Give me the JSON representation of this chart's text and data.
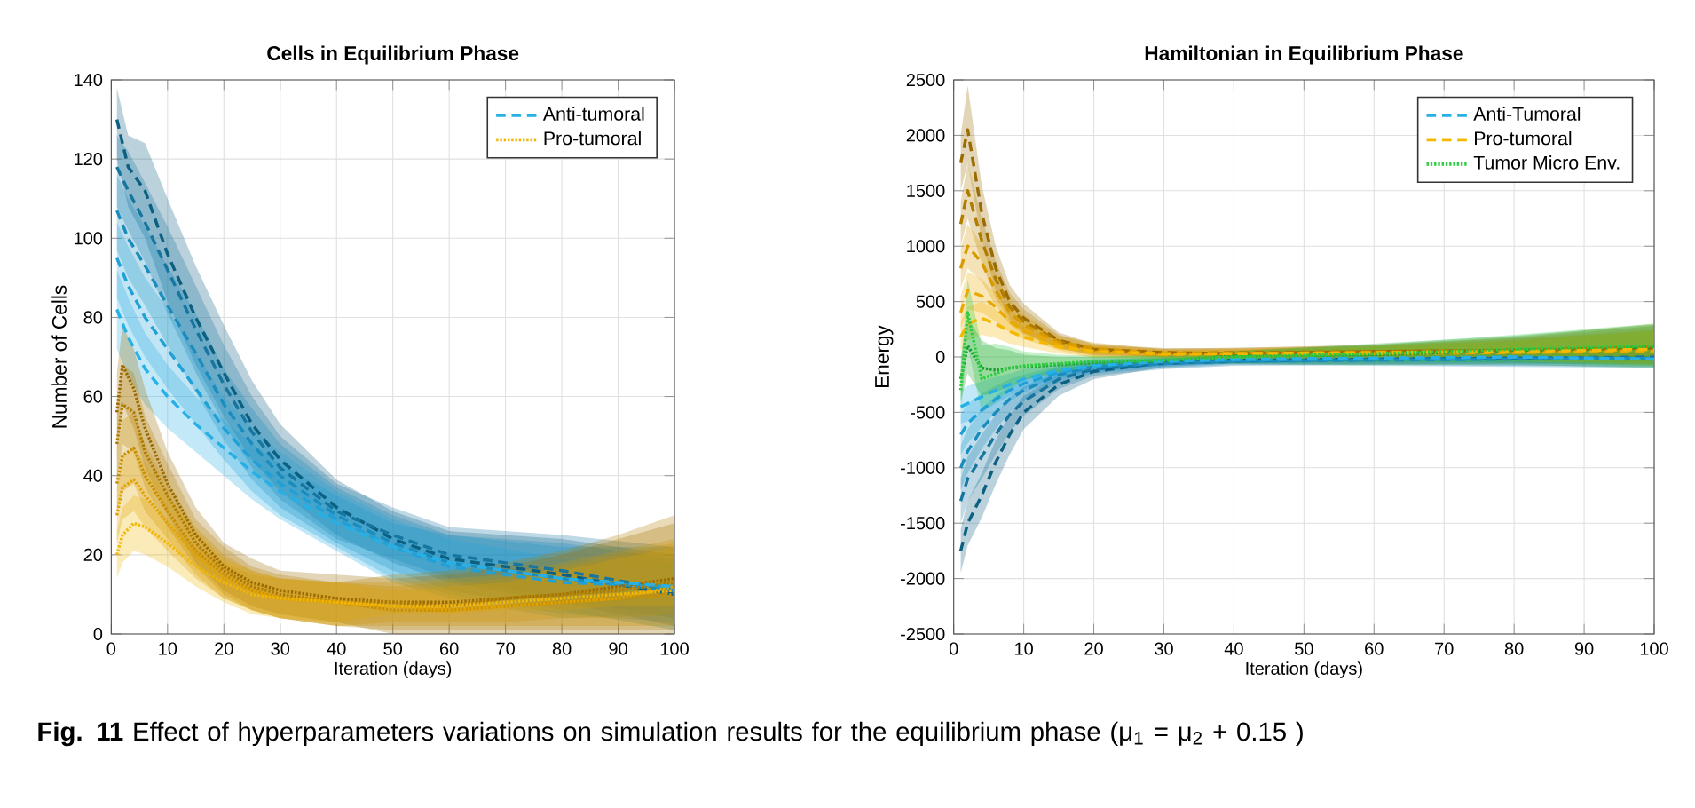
{
  "chart_data": [
    {
      "type": "line",
      "title": "Cells in Equilibrium Phase",
      "xlabel": "Iteration (days)",
      "ylabel": "Number of Cells",
      "xlim": [
        0,
        100
      ],
      "ylim": [
        0,
        140
      ],
      "xticks": [
        0,
        10,
        20,
        30,
        40,
        50,
        60,
        70,
        80,
        90,
        100
      ],
      "yticks": [
        0,
        20,
        40,
        60,
        80,
        100,
        120,
        140
      ],
      "grid": true,
      "legend": "top right",
      "annotations": [
        "**Fig. 11**  Effect of hyperparameters variations on simulation results for the equilibrium phase (μ$_{1}$ = μ$_{2}$ + 0.15 )"
      ],
      "series": [
        {
          "name": "Anti-tumoral",
          "color": "#27b0e6",
          "line_style": "dashed",
          "x": [
            1,
            3,
            6,
            10,
            15,
            20,
            25,
            30,
            40,
            50,
            60,
            80,
            100
          ],
          "values": [
            82,
            75,
            67,
            60,
            53,
            47,
            41,
            36,
            28,
            22,
            18,
            14,
            12
          ],
          "lower": [
            72,
            65,
            58,
            52,
            46,
            40,
            34,
            29,
            21,
            13,
            9,
            4,
            5
          ],
          "upper": [
            92,
            85,
            76,
            68,
            60,
            54,
            48,
            43,
            35,
            28,
            25,
            22,
            22
          ]
        },
        {
          "color": "#0b5f80",
          "line_style": "dashed",
          "x": [
            1,
            3,
            6,
            10,
            15,
            20,
            25,
            30,
            40,
            50,
            60,
            80,
            100
          ],
          "values": [
            130,
            118,
            112,
            96,
            80,
            66,
            53,
            44,
            32,
            24,
            19,
            15,
            10
          ],
          "lower": [
            120,
            108,
            100,
            84,
            68,
            55,
            44,
            36,
            25,
            18,
            13,
            8,
            2
          ],
          "upper": [
            138,
            126,
            124,
            110,
            93,
            78,
            64,
            53,
            39,
            31,
            26,
            24,
            20
          ]
        },
        {
          "color": "#1676a0",
          "line_style": "dashed",
          "x": [
            1,
            3,
            6,
            10,
            15,
            20,
            25,
            30,
            40,
            50,
            60,
            80,
            100
          ],
          "values": [
            118,
            112,
            104,
            92,
            77,
            63,
            51,
            42,
            31,
            25,
            20,
            16,
            11
          ],
          "lower": [
            108,
            102,
            94,
            81,
            66,
            53,
            42,
            34,
            24,
            19,
            14,
            9,
            4
          ],
          "upper": [
            126,
            122,
            114,
            103,
            88,
            73,
            60,
            50,
            38,
            32,
            27,
            25,
            22
          ]
        },
        {
          "color": "#1a8cbd",
          "line_style": "dashed",
          "x": [
            1,
            3,
            6,
            10,
            15,
            20,
            25,
            30,
            40,
            50,
            60,
            80,
            100
          ],
          "values": [
            107,
            100,
            93,
            83,
            71,
            58,
            48,
            40,
            30,
            23,
            18,
            14,
            11
          ],
          "lower": [
            97,
            90,
            83,
            73,
            61,
            49,
            39,
            32,
            23,
            16,
            11,
            6,
            1
          ],
          "upper": [
            116,
            110,
            103,
            93,
            81,
            67,
            57,
            48,
            37,
            30,
            25,
            23,
            19
          ]
        },
        {
          "color": "#1fa0d6",
          "line_style": "dashed",
          "x": [
            1,
            3,
            6,
            10,
            15,
            20,
            25,
            30,
            40,
            50,
            60,
            80,
            100
          ],
          "values": [
            95,
            88,
            80,
            72,
            62,
            52,
            44,
            38,
            29,
            22,
            17,
            13,
            12
          ],
          "lower": [
            85,
            78,
            70,
            62,
            53,
            44,
            36,
            30,
            22,
            14,
            10,
            5,
            3
          ],
          "upper": [
            104,
            98,
            90,
            82,
            71,
            60,
            52,
            46,
            36,
            29,
            24,
            19,
            18
          ]
        },
        {
          "name": "Pro-tumoral",
          "color": "#f2b705",
          "line_style": "dotted",
          "x": [
            1,
            2,
            4,
            6,
            10,
            15,
            20,
            25,
            30,
            40,
            50,
            60,
            70,
            80,
            90,
            100
          ],
          "values": [
            20,
            25,
            28,
            27,
            23,
            17,
            13,
            10,
            9,
            8,
            7,
            7,
            8,
            9,
            10,
            11
          ],
          "lower": [
            14,
            18,
            21,
            20,
            17,
            12,
            8,
            5,
            4,
            2,
            3,
            3,
            3,
            4,
            4,
            5
          ],
          "upper": [
            26,
            32,
            35,
            34,
            29,
            22,
            18,
            15,
            14,
            13,
            13,
            14,
            15,
            18,
            21,
            24
          ]
        },
        {
          "color": "#9c6b00",
          "line_style": "dotted",
          "x": [
            1,
            2,
            4,
            6,
            10,
            15,
            20,
            25,
            30,
            40,
            50,
            60,
            70,
            80,
            90,
            100
          ],
          "values": [
            56,
            68,
            62,
            52,
            38,
            25,
            17,
            13,
            11,
            9,
            8,
            8,
            9,
            10,
            12,
            14
          ],
          "lower": [
            45,
            58,
            52,
            42,
            30,
            18,
            11,
            7,
            5,
            3,
            0,
            0,
            0,
            0,
            0,
            0
          ],
          "upper": [
            66,
            78,
            72,
            62,
            46,
            32,
            23,
            19,
            16,
            15,
            14,
            15,
            17,
            20,
            24,
            28
          ]
        },
        {
          "color": "#b07c00",
          "line_style": "dotted",
          "x": [
            1,
            2,
            4,
            6,
            10,
            15,
            20,
            25,
            30,
            40,
            50,
            60,
            70,
            80,
            90,
            100
          ],
          "values": [
            48,
            58,
            56,
            46,
            35,
            23,
            16,
            12,
            10,
            8,
            8,
            7,
            9,
            10,
            11,
            13
          ],
          "lower": [
            38,
            48,
            46,
            37,
            27,
            17,
            10,
            6,
            4,
            2,
            1,
            1,
            1,
            1,
            1,
            1
          ],
          "upper": [
            58,
            68,
            66,
            55,
            43,
            29,
            22,
            17,
            15,
            13,
            15,
            16,
            18,
            21,
            25,
            30
          ]
        },
        {
          "color": "#c98e00",
          "line_style": "dotted",
          "x": [
            1,
            2,
            4,
            6,
            10,
            15,
            20,
            25,
            30,
            40,
            50,
            60,
            70,
            80,
            90,
            100
          ],
          "values": [
            38,
            45,
            47,
            40,
            31,
            21,
            15,
            11,
            9,
            8,
            6,
            6,
            7,
            8,
            9,
            10
          ],
          "lower": [
            30,
            36,
            38,
            31,
            24,
            15,
            9,
            6,
            4,
            2,
            2,
            2,
            2,
            2,
            2,
            2
          ],
          "upper": [
            46,
            54,
            56,
            48,
            38,
            27,
            20,
            16,
            14,
            13,
            12,
            13,
            14,
            17,
            20,
            23
          ]
        },
        {
          "color": "#e0a300",
          "line_style": "dotted",
          "x": [
            1,
            2,
            4,
            6,
            10,
            15,
            20,
            25,
            30,
            40,
            50,
            60,
            70,
            80,
            90,
            100
          ],
          "values": [
            30,
            37,
            39,
            35,
            28,
            20,
            14,
            11,
            9,
            8,
            7,
            6,
            7,
            8,
            9,
            12
          ],
          "lower": [
            23,
            29,
            31,
            27,
            21,
            14,
            9,
            6,
            4,
            3,
            5,
            5,
            6,
            6,
            7,
            7
          ],
          "upper": [
            37,
            45,
            47,
            43,
            35,
            26,
            19,
            16,
            14,
            13,
            11,
            12,
            13,
            16,
            19,
            22
          ]
        }
      ]
    },
    {
      "type": "line",
      "title": "Hamiltonian in Equilibrium Phase",
      "xlabel": "Iteration (days)",
      "ylabel": "Energy",
      "xlim": [
        0,
        100
      ],
      "ylim": [
        -2500,
        2500
      ],
      "xticks": [
        0,
        10,
        20,
        30,
        40,
        50,
        60,
        70,
        80,
        90,
        100
      ],
      "yticks": [
        -2500,
        -2000,
        -1500,
        -1000,
        -500,
        0,
        500,
        1000,
        1500,
        2000,
        2500
      ],
      "grid": true,
      "legend": "top right",
      "series": [
        {
          "name": "Anti-Tumoral",
          "color": "#27b0e6",
          "line_style": "dashed",
          "x": [
            1,
            2,
            4,
            6,
            8,
            10,
            15,
            20,
            30,
            40,
            60,
            80,
            100
          ],
          "values": [
            -450,
            -420,
            -360,
            -300,
            -250,
            -200,
            -120,
            -80,
            -40,
            -20,
            -10,
            0,
            -20
          ],
          "lower": [
            -600,
            -580,
            -500,
            -420,
            -350,
            -290,
            -180,
            -130,
            -75,
            -50,
            -40,
            -40,
            -50
          ],
          "upper": [
            -300,
            -260,
            -220,
            -180,
            -150,
            -110,
            -60,
            -30,
            0,
            20,
            40,
            30,
            40
          ]
        },
        {
          "color": "#0b5f80",
          "line_style": "dashed",
          "x": [
            1,
            2,
            4,
            6,
            8,
            10,
            15,
            20,
            30,
            40,
            60,
            80,
            100
          ],
          "values": [
            -1750,
            -1500,
            -1250,
            -950,
            -700,
            -500,
            -250,
            -130,
            -50,
            -30,
            -20,
            -10,
            -10
          ],
          "lower": [
            -1950,
            -1700,
            -1450,
            -1150,
            -880,
            -650,
            -350,
            -200,
            -90,
            -60,
            -65,
            -60,
            -70
          ],
          "upper": [
            -1550,
            -1300,
            -1050,
            -750,
            -520,
            -350,
            -160,
            -70,
            -10,
            0,
            20,
            40,
            50
          ]
        },
        {
          "color": "#1676a0",
          "line_style": "dashed",
          "x": [
            1,
            2,
            4,
            6,
            8,
            10,
            15,
            20,
            30,
            40,
            60,
            80,
            100
          ],
          "values": [
            -1300,
            -1100,
            -900,
            -700,
            -520,
            -400,
            -200,
            -110,
            -60,
            -40,
            -20,
            -10,
            0
          ],
          "lower": [
            -1500,
            -1300,
            -1100,
            -880,
            -680,
            -530,
            -290,
            -170,
            -110,
            -80,
            -70,
            -80,
            -90
          ],
          "upper": [
            -1100,
            -900,
            -700,
            -520,
            -360,
            -270,
            -120,
            -50,
            -20,
            10,
            30,
            60,
            80
          ]
        },
        {
          "color": "#1a8cbd",
          "line_style": "dashed",
          "x": [
            1,
            2,
            4,
            6,
            8,
            10,
            15,
            20,
            30,
            40,
            60,
            80,
            100
          ],
          "values": [
            -1000,
            -850,
            -650,
            -500,
            -380,
            -300,
            -160,
            -90,
            -60,
            -40,
            -30,
            -20,
            -10
          ],
          "lower": [
            -1200,
            -1050,
            -830,
            -650,
            -500,
            -400,
            -230,
            -150,
            -100,
            -70,
            -80,
            -90,
            -100
          ],
          "upper": [
            -800,
            -650,
            -470,
            -350,
            -260,
            -200,
            -90,
            -40,
            -15,
            5,
            25,
            50,
            70
          ]
        },
        {
          "color": "#1fa0d6",
          "line_style": "dashed",
          "x": [
            1,
            2,
            4,
            6,
            8,
            10,
            15,
            20,
            30,
            40,
            60,
            80,
            100
          ],
          "values": [
            -700,
            -600,
            -480,
            -380,
            -300,
            -240,
            -140,
            -80,
            -40,
            -30,
            -20,
            0,
            -20
          ],
          "lower": [
            -880,
            -780,
            -630,
            -500,
            -400,
            -320,
            -200,
            -140,
            -80,
            -55,
            -50,
            -50,
            -60
          ],
          "upper": [
            -520,
            -420,
            -330,
            -260,
            -200,
            -160,
            -80,
            -20,
            -5,
            15,
            35,
            45,
            60
          ]
        },
        {
          "name": "Pro-tumoral",
          "color": "#f5b800",
          "line_style": "dashed",
          "x": [
            1,
            2,
            4,
            6,
            8,
            10,
            15,
            20,
            30,
            40,
            60,
            80,
            100
          ],
          "values": [
            180,
            300,
            350,
            300,
            230,
            180,
            90,
            50,
            30,
            30,
            40,
            50,
            70
          ],
          "lower": [
            50,
            150,
            200,
            170,
            120,
            90,
            30,
            0,
            -10,
            -10,
            -20,
            -40,
            -80
          ],
          "upper": [
            320,
            450,
            500,
            430,
            340,
            270,
            150,
            100,
            70,
            70,
            100,
            160,
            250
          ]
        },
        {
          "color": "#9c6b00",
          "line_style": "dashed",
          "x": [
            1,
            2,
            4,
            6,
            8,
            10,
            15,
            20,
            30,
            40,
            60,
            80,
            100
          ],
          "values": [
            1750,
            2050,
            1300,
            800,
            500,
            350,
            150,
            70,
            40,
            30,
            50,
            60,
            80
          ],
          "lower": [
            1500,
            1750,
            1050,
            600,
            350,
            220,
            80,
            20,
            0,
            -5,
            10,
            -10,
            -30
          ],
          "upper": [
            2000,
            2450,
            1550,
            1000,
            650,
            480,
            220,
            120,
            80,
            80,
            110,
            170,
            280
          ]
        },
        {
          "color": "#b07c00",
          "line_style": "dashed",
          "x": [
            1,
            2,
            4,
            6,
            8,
            10,
            15,
            20,
            30,
            40,
            60,
            80,
            100
          ],
          "values": [
            1200,
            1500,
            1050,
            700,
            450,
            320,
            140,
            60,
            30,
            40,
            50,
            60,
            90
          ],
          "lower": [
            1000,
            1250,
            850,
            530,
            320,
            210,
            80,
            10,
            5,
            15,
            5,
            -15,
            -40
          ],
          "upper": [
            1400,
            1750,
            1250,
            870,
            580,
            430,
            200,
            110,
            75,
            85,
            105,
            180,
            300
          ]
        },
        {
          "color": "#d99a00",
          "line_style": "dashed",
          "x": [
            1,
            2,
            4,
            6,
            8,
            10,
            15,
            20,
            30,
            40,
            60,
            80,
            100
          ],
          "values": [
            800,
            1000,
            850,
            600,
            400,
            290,
            130,
            80,
            20,
            30,
            40,
            50,
            60
          ],
          "lower": [
            620,
            800,
            680,
            460,
            290,
            200,
            70,
            40,
            -5,
            -15,
            -10,
            -30,
            -60
          ],
          "upper": [
            980,
            1200,
            1020,
            740,
            510,
            380,
            190,
            130,
            65,
            75,
            95,
            150,
            240
          ]
        },
        {
          "color": "#eaa900",
          "line_style": "dashed",
          "x": [
            1,
            2,
            4,
            6,
            8,
            10,
            15,
            20,
            30,
            40,
            60,
            80,
            100
          ],
          "values": [
            400,
            600,
            550,
            450,
            320,
            240,
            110,
            50,
            20,
            30,
            30,
            40,
            50
          ],
          "lower": [
            250,
            430,
            400,
            320,
            220,
            160,
            60,
            -10,
            -15,
            -20,
            -15,
            -25,
            -70
          ],
          "upper": [
            550,
            770,
            700,
            580,
            420,
            320,
            170,
            90,
            60,
            65,
            85,
            140,
            230
          ]
        },
        {
          "name": "Tumor Micro Env.",
          "color": "#2ecc40",
          "line_style": "dotted",
          "x": [
            1,
            2,
            4,
            6,
            8,
            10,
            15,
            20,
            30,
            40,
            60,
            80,
            100
          ],
          "values": [
            -300,
            400,
            -200,
            -150,
            -100,
            -80,
            -60,
            -40,
            -30,
            0,
            30,
            70,
            100
          ],
          "lower": [
            -500,
            100,
            -500,
            -400,
            -300,
            -200,
            -130,
            -90,
            -70,
            -45,
            -45,
            -50,
            -80
          ],
          "upper": [
            -100,
            700,
            100,
            120,
            90,
            50,
            20,
            10,
            10,
            50,
            110,
            200,
            300
          ]
        },
        {
          "color": "#1e9e30",
          "line_style": "dotted",
          "x": [
            1,
            2,
            4,
            6,
            8,
            10,
            15,
            20,
            30,
            40,
            60,
            80,
            100
          ],
          "values": [
            -200,
            100,
            -100,
            -120,
            -100,
            -90,
            -70,
            -50,
            -40,
            10,
            20,
            60,
            90
          ],
          "lower": [
            -400,
            -150,
            -350,
            -320,
            -260,
            -210,
            -140,
            -100,
            -65,
            -65,
            -75,
            -70,
            -100
          ],
          "upper": [
            0,
            350,
            150,
            80,
            60,
            20,
            0,
            0,
            15,
            55,
            120,
            190,
            290
          ]
        }
      ]
    }
  ]
}
